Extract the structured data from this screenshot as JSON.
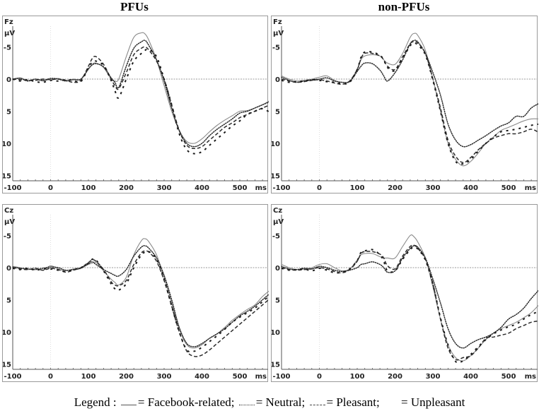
{
  "columns": [
    {
      "title": "PFUs"
    },
    {
      "title": "non-PFUs"
    }
  ],
  "legend": {
    "prefix": "Legend :",
    "items": [
      {
        "style": "solid",
        "label": "= Facebook-related;"
      },
      {
        "style": "dotted",
        "label": "= Neutral;"
      },
      {
        "style": "dashed",
        "label": "= Pleasant;"
      },
      {
        "style": "longdash",
        "label": "= Unpleasant"
      }
    ]
  },
  "chart_data": [
    {
      "type": "line",
      "title": "PFUs - Fz",
      "channel": "Fz",
      "ylabel": "µV",
      "xlabel": "ms",
      "x_ticks": [
        -100,
        0,
        100,
        200,
        300,
        400,
        500
      ],
      "y_ticks": [
        -5,
        0,
        5,
        10,
        15
      ],
      "xlim": [
        -100,
        580
      ],
      "ylim": [
        -8,
        16
      ],
      "y_inverted": true,
      "x": [
        -100,
        -80,
        -60,
        -40,
        -20,
        0,
        20,
        40,
        60,
        80,
        100,
        110,
        120,
        140,
        160,
        170,
        180,
        200,
        220,
        240,
        250,
        260,
        280,
        300,
        320,
        340,
        360,
        380,
        400,
        420,
        440,
        460,
        480,
        500,
        520,
        540,
        560,
        580
      ],
      "series": [
        {
          "name": "Facebook-related",
          "values": [
            0,
            -0.2,
            0.2,
            0,
            0.3,
            0,
            -0.1,
            0.2,
            0,
            0,
            -1.5,
            -2.3,
            -2.5,
            -1.8,
            0,
            0.3,
            0,
            -3.5,
            -6.5,
            -7.2,
            -7,
            -6,
            -3,
            1,
            5,
            8,
            9.7,
            10,
            9.3,
            8.2,
            7.2,
            6.4,
            5.7,
            5,
            4.9,
            4.5,
            4,
            3.3
          ]
        },
        {
          "name": "Neutral",
          "values": [
            0,
            -0.1,
            0.3,
            0,
            0.2,
            -0.1,
            0,
            0.3,
            0.1,
            0,
            -1.6,
            -2.2,
            -2.4,
            -1.9,
            -0.2,
            0.5,
            1.3,
            -2,
            -4.8,
            -5.8,
            -6,
            -5.2,
            -3,
            0.3,
            4.5,
            8,
            10,
            10.5,
            10,
            8.8,
            7.8,
            7,
            6.2,
            5.3,
            5,
            4.5,
            4,
            3.5
          ]
        },
        {
          "name": "Pleasant",
          "values": [
            0,
            0.1,
            0.2,
            0.2,
            0,
            0.1,
            0,
            0.2,
            0.5,
            0.2,
            -2,
            -3.2,
            -3.5,
            -2.3,
            0,
            1,
            1.5,
            -1,
            -3.8,
            -4.8,
            -5,
            -4.5,
            -2.8,
            0,
            4,
            8,
            10.3,
            10.8,
            10.5,
            9.5,
            8.5,
            7.5,
            6.8,
            6,
            5.5,
            5,
            4.5,
            4
          ]
        },
        {
          "name": "Unpleasant",
          "values": [
            0,
            0.3,
            0.1,
            0.4,
            0.5,
            0.2,
            0.3,
            0.1,
            0.2,
            0.4,
            -1.8,
            -2.6,
            -2.8,
            -2.1,
            0.2,
            1.8,
            2.9,
            0,
            -2.8,
            -4,
            -4.5,
            -4.6,
            -3.5,
            0,
            4,
            8.5,
            11,
            11.6,
            11.3,
            10.3,
            9.3,
            8.3,
            7.3,
            6.5,
            5.5,
            5,
            4.6,
            5.2
          ]
        }
      ]
    },
    {
      "type": "line",
      "title": "non-PFUs - Fz",
      "channel": "Fz",
      "ylabel": "µV",
      "xlabel": "ms",
      "x_ticks": [
        -100,
        0,
        100,
        200,
        300,
        400,
        500
      ],
      "y_ticks": [
        -5,
        0,
        5,
        10,
        15
      ],
      "xlim": [
        -100,
        580
      ],
      "ylim": [
        -8,
        16
      ],
      "y_inverted": true,
      "x": [
        -100,
        -80,
        -60,
        -40,
        -20,
        0,
        20,
        40,
        60,
        80,
        100,
        110,
        120,
        140,
        160,
        170,
        180,
        200,
        220,
        240,
        250,
        260,
        280,
        300,
        320,
        340,
        360,
        380,
        400,
        420,
        440,
        460,
        480,
        500,
        520,
        540,
        560,
        580
      ],
      "series": [
        {
          "name": "Facebook-related",
          "values": [
            -0.5,
            0,
            0.3,
            0.2,
            0,
            -0.3,
            -0.5,
            0.2,
            0.5,
            0.3,
            -1.5,
            -3,
            -3.6,
            -3.8,
            -3.6,
            -3,
            -2.5,
            -2.3,
            -4,
            -6.5,
            -7.1,
            -6.8,
            -4.5,
            0,
            5,
            10,
            12.5,
            13.5,
            12.8,
            11.5,
            10,
            9,
            8,
            7.5,
            7,
            6.5,
            6.2,
            6.2
          ]
        },
        {
          "name": "Neutral",
          "values": [
            -0.3,
            0.2,
            0.5,
            0.3,
            0.1,
            0,
            -0.2,
            0.3,
            0.5,
            0.4,
            -1.2,
            -2,
            -2.5,
            -2.4,
            -1.4,
            -0.5,
            0.3,
            -1,
            -3,
            -5.5,
            -6,
            -5.8,
            -4,
            -1,
            2.5,
            7,
            9.5,
            10.5,
            10.2,
            9.5,
            8.8,
            8,
            7.3,
            6.8,
            5.8,
            5.8,
            4.5,
            3.8
          ]
        },
        {
          "name": "Pleasant",
          "values": [
            0,
            0.3,
            0.5,
            0.4,
            0.2,
            0.1,
            0.3,
            0.6,
            0.8,
            0.3,
            -1.5,
            -3.2,
            -4,
            -4,
            -3.6,
            -3,
            -2,
            -1.5,
            -3.5,
            -5.5,
            -5.8,
            -5.6,
            -4,
            0,
            4.5,
            9.5,
            12,
            13,
            12.2,
            11,
            10,
            9.2,
            8.8,
            8.5,
            8.5,
            8.2,
            7.8,
            8.3
          ]
        },
        {
          "name": "Unpleasant",
          "values": [
            0.2,
            0.5,
            0.4,
            0.3,
            0.1,
            0.2,
            0.4,
            0.5,
            0.7,
            0.5,
            -1.5,
            -3.4,
            -4.2,
            -4.2,
            -3.7,
            -3,
            -1.8,
            -1.3,
            -3.2,
            -5.2,
            -5.6,
            -5.3,
            -3.8,
            0.2,
            5,
            10,
            12.8,
            13.2,
            12.5,
            11.2,
            10,
            9,
            8.2,
            8,
            7.8,
            7.5,
            7.2,
            7
          ]
        }
      ]
    },
    {
      "type": "line",
      "title": "PFUs - Cz",
      "channel": "Cz",
      "ylabel": "µV",
      "xlabel": "ms",
      "x_ticks": [
        -100,
        0,
        100,
        200,
        300,
        400,
        500
      ],
      "y_ticks": [
        -5,
        0,
        5,
        10,
        15
      ],
      "xlim": [
        -100,
        580
      ],
      "ylim": [
        -8,
        16
      ],
      "y_inverted": true,
      "x": [
        -100,
        -80,
        -60,
        -40,
        -20,
        0,
        20,
        40,
        60,
        80,
        100,
        110,
        120,
        140,
        160,
        170,
        180,
        200,
        220,
        240,
        250,
        260,
        280,
        300,
        320,
        340,
        360,
        380,
        400,
        420,
        440,
        460,
        480,
        500,
        520,
        540,
        560,
        580
      ],
      "series": [
        {
          "name": "Facebook-related",
          "values": [
            -0.2,
            0,
            0.3,
            0.1,
            0.4,
            -0.3,
            0.2,
            0.5,
            0.2,
            0,
            -0.5,
            -0.7,
            -0.8,
            0.5,
            1.8,
            2.3,
            2.7,
            1.5,
            -2,
            -4.2,
            -4.5,
            -4,
            -2,
            1.5,
            5.5,
            9.5,
            12,
            12.5,
            12,
            11,
            10.3,
            9.3,
            8.2,
            7.3,
            6.5,
            5.8,
            4.5,
            3.5
          ]
        },
        {
          "name": "Neutral",
          "values": [
            -0.1,
            0.1,
            0.2,
            0.3,
            0.1,
            -0.1,
            0,
            0.4,
            0.3,
            0.1,
            -0.6,
            -0.9,
            -0.5,
            0.3,
            0.9,
            1.2,
            1.3,
            0.3,
            -1.8,
            -3.2,
            -3.4,
            -3,
            -1.5,
            1.2,
            5,
            9.3,
            11.8,
            12.3,
            11.8,
            11,
            10.3,
            9.5,
            8.5,
            7.5,
            6.8,
            6,
            5,
            4
          ]
        },
        {
          "name": "Pleasant",
          "values": [
            0,
            0.2,
            0.3,
            0.1,
            0.4,
            0.1,
            0.3,
            0.7,
            0.4,
            0,
            -0.8,
            -1.2,
            -1,
            0.3,
            2.2,
            2.7,
            2.8,
            2,
            -0.5,
            -2.3,
            -2.6,
            -2.4,
            -1,
            2,
            6,
            10,
            13,
            13.8,
            13.6,
            12.8,
            11.8,
            10.8,
            9.8,
            8.8,
            7.8,
            6.8,
            5.8,
            4.8
          ]
        },
        {
          "name": "Unpleasant",
          "values": [
            0.1,
            0.3,
            0.1,
            0.4,
            0.2,
            0.2,
            0.4,
            0.6,
            0.3,
            0,
            -0.7,
            -1.3,
            -1.2,
            0.5,
            2.5,
            3.3,
            3.5,
            2.5,
            0,
            -2,
            -2.4,
            -2.5,
            -1.3,
            1.8,
            6,
            10,
            12.8,
            13,
            12.4,
            11.5,
            10.6,
            9.6,
            8.5,
            7.7,
            7,
            6.3,
            5.3,
            4.3
          ]
        }
      ]
    },
    {
      "type": "line",
      "title": "non-PFUs - Cz",
      "channel": "Cz",
      "ylabel": "µV",
      "xlabel": "ms",
      "x_ticks": [
        -100,
        0,
        100,
        200,
        300,
        400,
        500
      ],
      "y_ticks": [
        -5,
        0,
        5,
        10,
        15
      ],
      "xlim": [
        -100,
        580
      ],
      "ylim": [
        -8,
        16
      ],
      "y_inverted": true,
      "x": [
        -100,
        -80,
        -60,
        -40,
        -20,
        0,
        20,
        40,
        60,
        80,
        100,
        110,
        120,
        140,
        160,
        170,
        180,
        200,
        220,
        240,
        250,
        260,
        280,
        300,
        320,
        340,
        360,
        380,
        400,
        420,
        440,
        460,
        480,
        500,
        520,
        540,
        560,
        580
      ],
      "series": [
        {
          "name": "Facebook-related",
          "values": [
            -0.5,
            0,
            0.3,
            0.2,
            0,
            -0.5,
            -0.6,
            0,
            0.5,
            0.2,
            -1.2,
            -2,
            -2.2,
            -2.2,
            -1.7,
            -1.5,
            -1.5,
            -1.5,
            -3.3,
            -5,
            -4.8,
            -4,
            -1.5,
            3,
            8,
            12,
            14,
            14.5,
            13.7,
            12.5,
            11.2,
            10.2,
            9.5,
            9,
            8.5,
            7.8,
            7,
            5.8
          ]
        },
        {
          "name": "Neutral",
          "values": [
            -0.2,
            0.2,
            0.3,
            0.1,
            0.2,
            -0.2,
            0,
            0.4,
            0.6,
            0.4,
            0,
            -0.5,
            -0.6,
            -0.9,
            -0.5,
            0,
            0.7,
            0.5,
            -1.5,
            -3,
            -3.4,
            -3.2,
            -1.5,
            1.8,
            5.5,
            9.5,
            11.8,
            12.5,
            11.8,
            11.2,
            10.8,
            10.2,
            9.3,
            8,
            7.3,
            6.3,
            4.8,
            3.5
          ]
        },
        {
          "name": "Pleasant",
          "values": [
            0,
            0.3,
            0.4,
            0.3,
            0.2,
            0,
            0.2,
            0.6,
            0.8,
            0.3,
            -1,
            -2.2,
            -2.5,
            -2.5,
            -2.1,
            -1.5,
            -0.3,
            0.2,
            -1.8,
            -3.3,
            -3.5,
            -3,
            -1.3,
            2.5,
            8,
            12.5,
            14.3,
            14,
            13.7,
            12.5,
            11,
            10.8,
            10.5,
            10.2,
            9.5,
            9,
            8.5,
            8.3
          ]
        },
        {
          "name": "Unpleasant",
          "values": [
            0.1,
            0.4,
            0.3,
            0.2,
            0.5,
            0.1,
            0.4,
            0.8,
            0.7,
            0.2,
            -1.1,
            -2.4,
            -2.6,
            -2.8,
            -2,
            -1,
            0.5,
            0.5,
            -1.3,
            -2.8,
            -3.2,
            -2.9,
            -1.2,
            2.6,
            7.8,
            12,
            14.6,
            14.5,
            13.5,
            12.3,
            11.2,
            10.3,
            9.7,
            9.2,
            8.8,
            8,
            7.3,
            6.8
          ]
        }
      ]
    }
  ],
  "style": {
    "frame_color": "#9a9a9a",
    "axis_color": "#555555",
    "zero_line_color": "#9a9a9a",
    "series_colors": {
      "Facebook-related": "#8a8a8a",
      "Neutral": "#2b2b2b",
      "Pleasant": "#2b2b2b",
      "Unpleasant": "#1a1a1a"
    }
  }
}
